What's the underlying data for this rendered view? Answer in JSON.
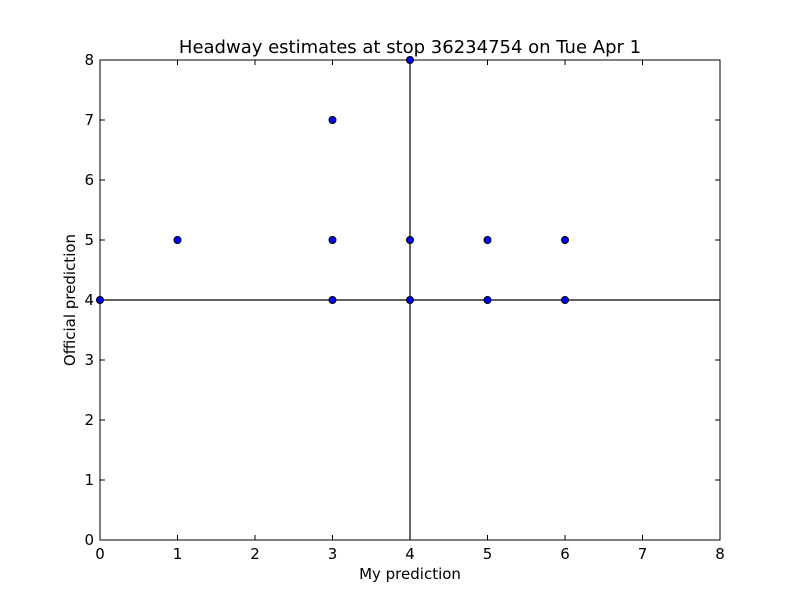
{
  "chart_data": {
    "type": "scatter",
    "title": "Headway estimates at stop 36234754 on Tue Apr 1",
    "xlabel": "My prediction",
    "ylabel": "Official prediction",
    "xlim": [
      0,
      8
    ],
    "ylim": [
      0,
      8
    ],
    "xticks": [
      "0",
      "1",
      "2",
      "3",
      "4",
      "5",
      "6",
      "7",
      "8"
    ],
    "yticks": [
      "0",
      "1",
      "2",
      "3",
      "4",
      "5",
      "6",
      "7",
      "8"
    ],
    "grid": false,
    "reference_lines": {
      "x": 4,
      "y": 4
    },
    "marker_color": "#0000ff",
    "points": [
      {
        "x": 0,
        "y": 4
      },
      {
        "x": 1,
        "y": 5
      },
      {
        "x": 3,
        "y": 7
      },
      {
        "x": 3,
        "y": 5
      },
      {
        "x": 3,
        "y": 4
      },
      {
        "x": 4,
        "y": 8
      },
      {
        "x": 4,
        "y": 5
      },
      {
        "x": 4,
        "y": 4
      },
      {
        "x": 5,
        "y": 5
      },
      {
        "x": 5,
        "y": 4
      },
      {
        "x": 6,
        "y": 5
      },
      {
        "x": 6,
        "y": 4
      }
    ]
  }
}
